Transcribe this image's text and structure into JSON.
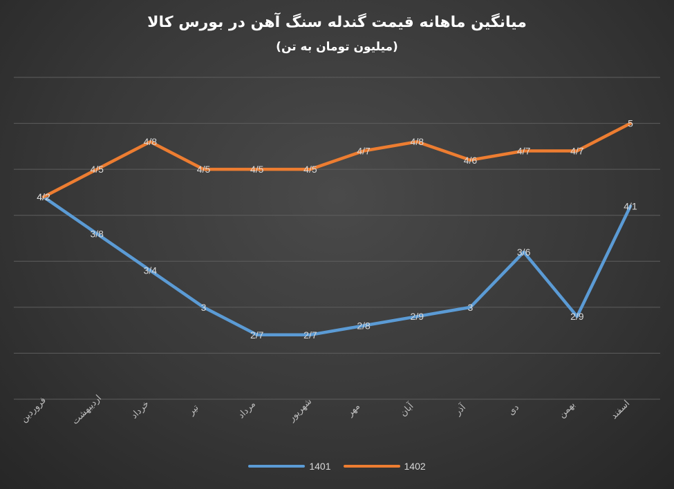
{
  "chart_data": {
    "type": "line",
    "title": "میانگین ماهانه قیمت گندله سنگ آهن در بورس کالا",
    "subtitle": "(میلیون تومان به تن)",
    "categories": [
      "فروردین",
      "اردیبهشت",
      "خرداد",
      "تیر",
      "مرداد",
      "شهریور",
      "مهر",
      "آبان",
      "آذر",
      "دی",
      "بهمن",
      "اسفند"
    ],
    "series": [
      {
        "name": "1401",
        "color": "#5b9bd5",
        "values": [
          4.2,
          3.8,
          3.4,
          3.0,
          2.7,
          2.7,
          2.8,
          2.9,
          3.0,
          3.6,
          2.9,
          4.1
        ],
        "labels": [
          "4/2",
          "3/8",
          "3/4",
          "3",
          "2/7",
          "2/7",
          "2/8",
          "2/9",
          "3",
          "3/6",
          "2/9",
          "4/1"
        ]
      },
      {
        "name": "1402",
        "color": "#ed7d31",
        "values": [
          4.2,
          4.5,
          4.8,
          4.5,
          4.5,
          4.5,
          4.7,
          4.8,
          4.6,
          4.7,
          4.7,
          5.0
        ],
        "labels": [
          "4/2",
          "4/5",
          "4/8",
          "4/5",
          "4/5",
          "4/5",
          "4/7",
          "4/8",
          "4/6",
          "4/7",
          "4/7",
          "5"
        ]
      }
    ],
    "ylim": [
      2.0,
      5.5
    ],
    "grid": true,
    "legend_position": "bottom"
  }
}
